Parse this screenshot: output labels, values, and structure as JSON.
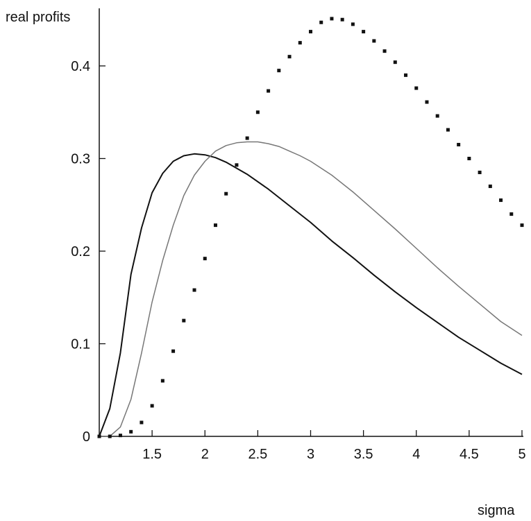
{
  "chart_data": {
    "type": "line",
    "title": "",
    "ylabel": "real profits",
    "xlabel": "sigma",
    "xlim": [
      1.0,
      5.0
    ],
    "ylim": [
      0,
      0.46
    ],
    "x_ticks": [
      {
        "value": 1.5,
        "label": "1.5"
      },
      {
        "value": 2,
        "label": "2"
      },
      {
        "value": 2.5,
        "label": "2.5"
      },
      {
        "value": 3,
        "label": "3"
      },
      {
        "value": 3.5,
        "label": "3.5"
      },
      {
        "value": 4,
        "label": "4"
      },
      {
        "value": 4.5,
        "label": "4.5"
      },
      {
        "value": 5,
        "label": "5"
      }
    ],
    "y_ticks": [
      {
        "value": 0,
        "label": "0"
      },
      {
        "value": 0.1,
        "label": "0.1"
      },
      {
        "value": 0.2,
        "label": "0.2"
      },
      {
        "value": 0.3,
        "label": "0.3"
      },
      {
        "value": 0.4,
        "label": "0.4"
      }
    ],
    "grid": false,
    "series": [
      {
        "style": "solid-dark",
        "color": "#111111",
        "x": [
          1.0,
          1.1,
          1.2,
          1.3,
          1.4,
          1.5,
          1.6,
          1.7,
          1.8,
          1.9,
          2.0,
          2.1,
          2.2,
          2.4,
          2.6,
          2.8,
          3.0,
          3.2,
          3.4,
          3.6,
          3.8,
          4.0,
          4.2,
          4.4,
          4.6,
          4.8,
          5.0
        ],
        "y": [
          0.0,
          0.03,
          0.09,
          0.175,
          0.225,
          0.263,
          0.284,
          0.297,
          0.303,
          0.305,
          0.304,
          0.301,
          0.296,
          0.283,
          0.267,
          0.249,
          0.231,
          0.211,
          0.193,
          0.174,
          0.156,
          0.139,
          0.123,
          0.107,
          0.093,
          0.079,
          0.067
        ]
      },
      {
        "style": "solid-light",
        "color": "#777777",
        "x": [
          1.0,
          1.1,
          1.2,
          1.3,
          1.4,
          1.5,
          1.6,
          1.7,
          1.8,
          1.9,
          2.0,
          2.1,
          2.2,
          2.3,
          2.4,
          2.5,
          2.6,
          2.7,
          2.8,
          2.9,
          3.0,
          3.2,
          3.4,
          3.6,
          3.8,
          4.0,
          4.2,
          4.4,
          4.6,
          4.8,
          5.0
        ],
        "y": [
          0.0,
          0.0,
          0.01,
          0.04,
          0.09,
          0.145,
          0.19,
          0.228,
          0.26,
          0.282,
          0.297,
          0.308,
          0.314,
          0.317,
          0.318,
          0.318,
          0.316,
          0.313,
          0.308,
          0.303,
          0.297,
          0.282,
          0.264,
          0.244,
          0.224,
          0.203,
          0.182,
          0.162,
          0.143,
          0.124,
          0.109
        ]
      },
      {
        "style": "dotted",
        "color": "#111111",
        "x": [
          1.0,
          1.1,
          1.2,
          1.3,
          1.4,
          1.5,
          1.6,
          1.7,
          1.8,
          1.9,
          2.0,
          2.1,
          2.2,
          2.3,
          2.4,
          2.5,
          2.6,
          2.7,
          2.8,
          2.9,
          3.0,
          3.1,
          3.2,
          3.3,
          3.4,
          3.5,
          3.6,
          3.7,
          3.8,
          3.9,
          4.0,
          4.1,
          4.2,
          4.3,
          4.4,
          4.5,
          4.6,
          4.7,
          4.8,
          4.9,
          5.0
        ],
        "y": [
          0.0,
          0.0,
          0.001,
          0.005,
          0.015,
          0.033,
          0.06,
          0.092,
          0.125,
          0.158,
          0.192,
          0.228,
          0.262,
          0.293,
          0.322,
          0.35,
          0.373,
          0.395,
          0.41,
          0.425,
          0.437,
          0.447,
          0.451,
          0.45,
          0.445,
          0.437,
          0.427,
          0.416,
          0.404,
          0.39,
          0.376,
          0.361,
          0.346,
          0.331,
          0.315,
          0.3,
          0.285,
          0.27,
          0.255,
          0.24,
          0.228
        ]
      }
    ]
  }
}
